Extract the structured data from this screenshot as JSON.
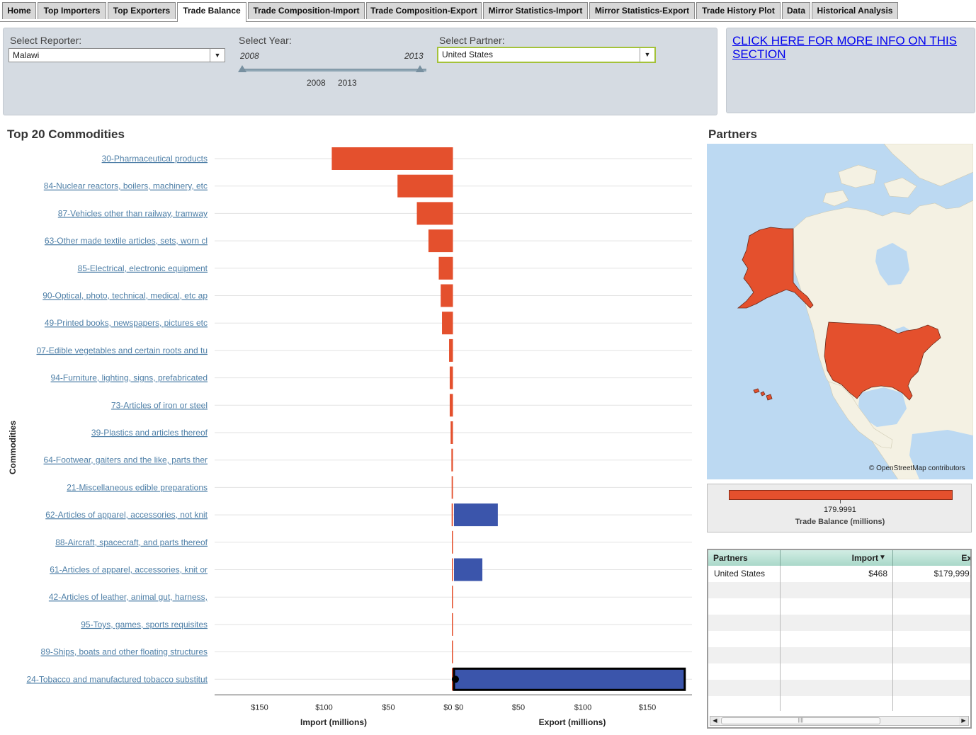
{
  "tabs": [
    {
      "label": "Home",
      "active": false
    },
    {
      "label": "Top Importers",
      "active": false
    },
    {
      "label": "Top Exporters",
      "active": false
    },
    {
      "label": "Trade Balance",
      "active": true
    },
    {
      "label": "Trade Composition-Import",
      "active": false
    },
    {
      "label": "Trade Composition-Export",
      "active": false
    },
    {
      "label": "Mirror Statistics-Import",
      "active": false
    },
    {
      "label": "Mirror Statistics-Export",
      "active": false
    },
    {
      "label": "Trade History Plot",
      "active": false
    },
    {
      "label": "Data",
      "active": false
    },
    {
      "label": "Historical Analysis",
      "active": false
    }
  ],
  "controls": {
    "reporter_label": "Select Reporter:",
    "reporter_value": "Malawi",
    "year_label": "Select Year:",
    "year_min_label": "2008",
    "year_max_label": "2013",
    "year_selected_start": "2008",
    "year_selected_end": "2013",
    "partner_label": "Select Partner:",
    "partner_value": "United States"
  },
  "info_link": "CLICK HERE FOR MORE INFO ON THIS SECTION",
  "chart_title": "Top 20 Commodities",
  "partners_title": "Partners",
  "chart_data": {
    "type": "bar",
    "orientation": "horizontal-diverging",
    "ylabel": "Commodities",
    "xlabel_left": "Import (millions)",
    "xlabel_right": "Export (millions)",
    "import_ticks": [
      "$150",
      "$100",
      "$50",
      "$0"
    ],
    "export_ticks": [
      "$0",
      "$50",
      "$100",
      "$150"
    ],
    "import_color": "#e4502d",
    "export_color": "#3b55ab",
    "categories": [
      "30-Pharmaceutical products",
      "84-Nuclear reactors, boilers, machinery, etc",
      "87-Vehicles other than railway, tramway",
      "63-Other made textile articles, sets, worn cl",
      "85-Electrical, electronic equipment",
      "90-Optical, photo, technical, medical, etc ap",
      "49-Printed books, newspapers, pictures etc",
      "07-Edible vegetables and certain roots and tu",
      "94-Furniture, lighting, signs, prefabricated",
      "73-Articles of iron or steel",
      "39-Plastics and articles thereof",
      "64-Footwear, gaiters and the like, parts ther",
      "21-Miscellaneous edible preparations",
      "62-Articles of apparel, accessories, not knit",
      "88-Aircraft, spacecraft, and parts thereof",
      "61-Articles of apparel, accessories, knit or",
      "42-Articles of leather, animal gut, harness,",
      "95-Toys, games, sports requisites",
      "89-Ships, boats and other floating structures",
      "24-Tobacco and manufactured tobacco substitut"
    ],
    "series": [
      {
        "name": "Import",
        "values": [
          94,
          43,
          28,
          19,
          11,
          9.5,
          8.5,
          3,
          2.5,
          2.5,
          1.8,
          1.2,
          1,
          1,
          0.8,
          0.8,
          0.5,
          0.3,
          0.2,
          0.2
        ]
      },
      {
        "name": "Export",
        "values": [
          0,
          0,
          0,
          0,
          0,
          0,
          0,
          0,
          0,
          0,
          0,
          0,
          0,
          34,
          0,
          22,
          0,
          0,
          0,
          179
        ]
      }
    ],
    "highlighted_category": "24-Tobacco and manufactured tobacco substitut"
  },
  "map": {
    "credit": "© OpenStreetMap contributors",
    "highlight_color": "#e4502d",
    "water_color": "#bcd9f2",
    "land_color": "#f4f1e3"
  },
  "legend": {
    "value": "179.9991",
    "title": "Trade Balance  (millions)",
    "color": "#e4502d"
  },
  "table": {
    "headers": [
      "Partners",
      "Import",
      "Ex"
    ],
    "sort_indicator": "▼",
    "rows": [
      {
        "partner": "United States",
        "import": "$468",
        "export": "$179,999,"
      }
    ]
  }
}
